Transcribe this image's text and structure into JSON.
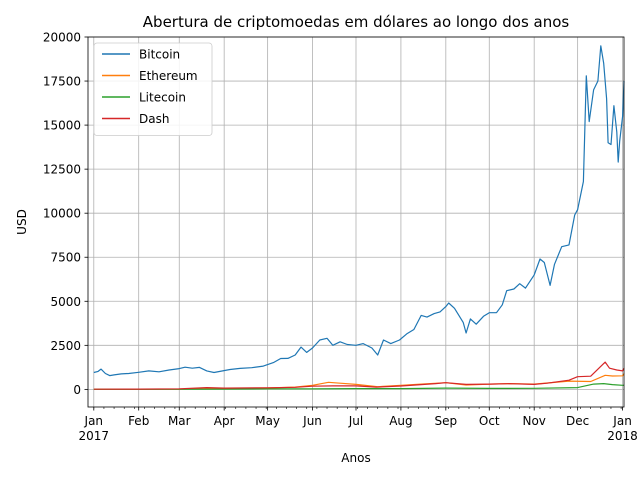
{
  "chart_data": {
    "type": "line",
    "title": "Abertura de criptomoedas em dólares ao longo dos anos",
    "xlabel": "Anos",
    "ylabel": "USD",
    "xlim": [
      "2016-12-28",
      "2018-01-02"
    ],
    "ylim": [
      -1000,
      20000
    ],
    "grid": true,
    "legend_position": "top-left",
    "x_ticks": [
      {
        "date": "2017-01-01",
        "label": "Jan",
        "sublabel": "2017"
      },
      {
        "date": "2017-02-01",
        "label": "Feb"
      },
      {
        "date": "2017-03-01",
        "label": "Mar"
      },
      {
        "date": "2017-04-01",
        "label": "Apr"
      },
      {
        "date": "2017-05-01",
        "label": "May"
      },
      {
        "date": "2017-06-01",
        "label": "Jun"
      },
      {
        "date": "2017-07-01",
        "label": "Jul"
      },
      {
        "date": "2017-08-01",
        "label": "Aug"
      },
      {
        "date": "2017-09-01",
        "label": "Sep"
      },
      {
        "date": "2017-10-01",
        "label": "Oct"
      },
      {
        "date": "2017-11-01",
        "label": "Nov"
      },
      {
        "date": "2017-12-01",
        "label": "Dec"
      },
      {
        "date": "2018-01-01",
        "label": "Jan",
        "sublabel": "2018"
      }
    ],
    "y_ticks": [
      0,
      2500,
      5000,
      7500,
      10000,
      12500,
      15000,
      17500,
      20000
    ],
    "y_tick_labels": [
      "0",
      "2500",
      "5000",
      "7500",
      "10000",
      "12500",
      "15000",
      "17500",
      "20000"
    ],
    "series": [
      {
        "name": "Bitcoin",
        "color": "#1f77b4",
        "points": [
          [
            "2017-01-01",
            960
          ],
          [
            "2017-01-04",
            1020
          ],
          [
            "2017-01-06",
            1150
          ],
          [
            "2017-01-09",
            900
          ],
          [
            "2017-01-12",
            780
          ],
          [
            "2017-01-15",
            820
          ],
          [
            "2017-01-20",
            880
          ],
          [
            "2017-01-25",
            900
          ],
          [
            "2017-02-01",
            970
          ],
          [
            "2017-02-08",
            1050
          ],
          [
            "2017-02-15",
            1000
          ],
          [
            "2017-02-22",
            1100
          ],
          [
            "2017-03-01",
            1180
          ],
          [
            "2017-03-05",
            1260
          ],
          [
            "2017-03-10",
            1200
          ],
          [
            "2017-03-15",
            1250
          ],
          [
            "2017-03-20",
            1050
          ],
          [
            "2017-03-25",
            960
          ],
          [
            "2017-03-30",
            1040
          ],
          [
            "2017-04-05",
            1130
          ],
          [
            "2017-04-12",
            1190
          ],
          [
            "2017-04-20",
            1230
          ],
          [
            "2017-04-28",
            1320
          ],
          [
            "2017-05-05",
            1520
          ],
          [
            "2017-05-10",
            1750
          ],
          [
            "2017-05-15",
            1760
          ],
          [
            "2017-05-20",
            1950
          ],
          [
            "2017-05-24",
            2400
          ],
          [
            "2017-05-28",
            2100
          ],
          [
            "2017-06-01",
            2350
          ],
          [
            "2017-06-06",
            2800
          ],
          [
            "2017-06-11",
            2900
          ],
          [
            "2017-06-15",
            2500
          ],
          [
            "2017-06-20",
            2700
          ],
          [
            "2017-06-25",
            2550
          ],
          [
            "2017-07-01",
            2500
          ],
          [
            "2017-07-06",
            2600
          ],
          [
            "2017-07-12",
            2350
          ],
          [
            "2017-07-16",
            1950
          ],
          [
            "2017-07-20",
            2800
          ],
          [
            "2017-07-25",
            2600
          ],
          [
            "2017-07-31",
            2800
          ],
          [
            "2017-08-05",
            3150
          ],
          [
            "2017-08-10",
            3400
          ],
          [
            "2017-08-15",
            4200
          ],
          [
            "2017-08-19",
            4100
          ],
          [
            "2017-08-24",
            4300
          ],
          [
            "2017-08-28",
            4400
          ],
          [
            "2017-09-01",
            4700
          ],
          [
            "2017-09-03",
            4900
          ],
          [
            "2017-09-07",
            4600
          ],
          [
            "2017-09-10",
            4200
          ],
          [
            "2017-09-13",
            3800
          ],
          [
            "2017-09-15",
            3200
          ],
          [
            "2017-09-18",
            4000
          ],
          [
            "2017-09-22",
            3700
          ],
          [
            "2017-09-27",
            4150
          ],
          [
            "2017-10-01",
            4350
          ],
          [
            "2017-10-06",
            4350
          ],
          [
            "2017-10-10",
            4800
          ],
          [
            "2017-10-13",
            5600
          ],
          [
            "2017-10-18",
            5700
          ],
          [
            "2017-10-22",
            6000
          ],
          [
            "2017-10-26",
            5750
          ],
          [
            "2017-11-01",
            6500
          ],
          [
            "2017-11-05",
            7400
          ],
          [
            "2017-11-08",
            7200
          ],
          [
            "2017-11-12",
            5900
          ],
          [
            "2017-11-15",
            7100
          ],
          [
            "2017-11-20",
            8100
          ],
          [
            "2017-11-25",
            8200
          ],
          [
            "2017-11-29",
            9900
          ],
          [
            "2017-12-01",
            10200
          ],
          [
            "2017-12-05",
            11800
          ],
          [
            "2017-12-07",
            17800
          ],
          [
            "2017-12-09",
            15200
          ],
          [
            "2017-12-12",
            17000
          ],
          [
            "2017-12-15",
            17500
          ],
          [
            "2017-12-17",
            19500
          ],
          [
            "2017-12-19",
            18500
          ],
          [
            "2017-12-21",
            16500
          ],
          [
            "2017-12-22",
            14000
          ],
          [
            "2017-12-24",
            13900
          ],
          [
            "2017-12-26",
            16100
          ],
          [
            "2017-12-28",
            14600
          ],
          [
            "2017-12-29",
            12900
          ],
          [
            "2017-12-30",
            14100
          ],
          [
            "2018-01-01",
            15500
          ],
          [
            "2018-01-02",
            17500
          ]
        ]
      },
      {
        "name": "Ethereum",
        "color": "#ff7f0e",
        "points": [
          [
            "2017-01-01",
            8
          ],
          [
            "2017-02-01",
            11
          ],
          [
            "2017-03-01",
            17
          ],
          [
            "2017-03-15",
            40
          ],
          [
            "2017-04-01",
            50
          ],
          [
            "2017-05-01",
            80
          ],
          [
            "2017-05-20",
            130
          ],
          [
            "2017-06-01",
            230
          ],
          [
            "2017-06-12",
            400
          ],
          [
            "2017-06-20",
            350
          ],
          [
            "2017-07-01",
            280
          ],
          [
            "2017-07-16",
            150
          ],
          [
            "2017-08-01",
            230
          ],
          [
            "2017-08-15",
            300
          ],
          [
            "2017-09-01",
            380
          ],
          [
            "2017-09-15",
            250
          ],
          [
            "2017-10-01",
            300
          ],
          [
            "2017-10-15",
            330
          ],
          [
            "2017-11-01",
            300
          ],
          [
            "2017-11-25",
            470
          ],
          [
            "2017-12-10",
            450
          ],
          [
            "2017-12-20",
            800
          ],
          [
            "2017-12-25",
            760
          ],
          [
            "2018-01-01",
            770
          ],
          [
            "2018-01-02",
            900
          ]
        ]
      },
      {
        "name": "Litecoin",
        "color": "#2ca02c",
        "points": [
          [
            "2017-01-01",
            4
          ],
          [
            "2017-03-01",
            4
          ],
          [
            "2017-04-01",
            10
          ],
          [
            "2017-05-01",
            25
          ],
          [
            "2017-06-01",
            30
          ],
          [
            "2017-07-01",
            45
          ],
          [
            "2017-08-01",
            45
          ],
          [
            "2017-09-01",
            70
          ],
          [
            "2017-10-01",
            55
          ],
          [
            "2017-11-01",
            60
          ],
          [
            "2017-12-01",
            100
          ],
          [
            "2017-12-12",
            300
          ],
          [
            "2017-12-19",
            330
          ],
          [
            "2017-12-25",
            270
          ],
          [
            "2018-01-01",
            230
          ],
          [
            "2018-01-02",
            240
          ]
        ]
      },
      {
        "name": "Dash",
        "color": "#d62728",
        "points": [
          [
            "2017-01-01",
            10
          ],
          [
            "2017-02-01",
            17
          ],
          [
            "2017-03-01",
            35
          ],
          [
            "2017-03-20",
            100
          ],
          [
            "2017-04-01",
            75
          ],
          [
            "2017-05-01",
            90
          ],
          [
            "2017-05-20",
            120
          ],
          [
            "2017-06-01",
            180
          ],
          [
            "2017-06-15",
            200
          ],
          [
            "2017-07-01",
            200
          ],
          [
            "2017-07-15",
            130
          ],
          [
            "2017-08-01",
            190
          ],
          [
            "2017-08-25",
            330
          ],
          [
            "2017-09-01",
            380
          ],
          [
            "2017-09-15",
            280
          ],
          [
            "2017-10-01",
            300
          ],
          [
            "2017-10-15",
            320
          ],
          [
            "2017-11-01",
            280
          ],
          [
            "2017-11-10",
            350
          ],
          [
            "2017-11-25",
            520
          ],
          [
            "2017-12-01",
            720
          ],
          [
            "2017-12-10",
            750
          ],
          [
            "2017-12-20",
            1550
          ],
          [
            "2017-12-23",
            1200
          ],
          [
            "2017-12-28",
            1100
          ],
          [
            "2018-01-01",
            1050
          ],
          [
            "2018-01-02",
            1200
          ]
        ]
      }
    ]
  }
}
